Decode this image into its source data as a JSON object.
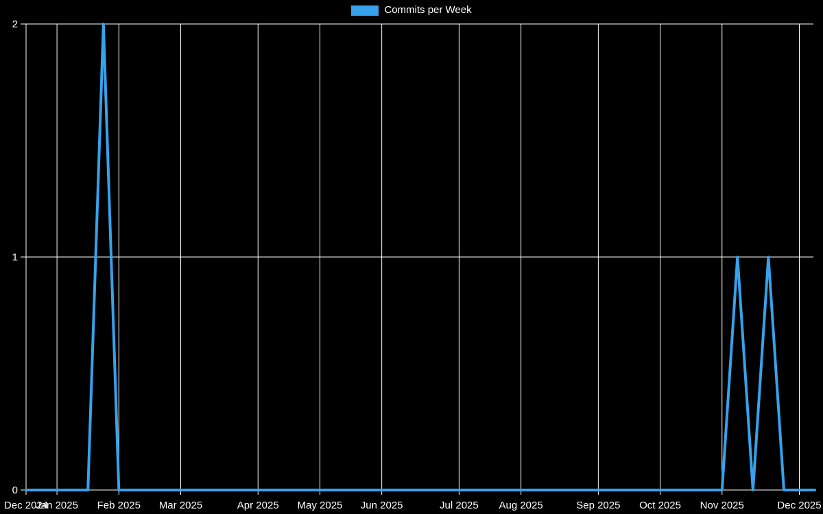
{
  "legend": {
    "label": "Commits per Week",
    "swatch_color": "#36a2eb"
  },
  "chart_data": {
    "type": "line",
    "title": "",
    "x_unit": "week",
    "legend_position": "top",
    "grid": true,
    "background": "#000000",
    "grid_color": "#ffffff",
    "text_color": "#ffffff",
    "line_color": "#36a2eb",
    "ylim": [
      0,
      2
    ],
    "y_ticks": [
      0,
      1,
      2
    ],
    "x_ticks": [
      {
        "label": "Dec 2024",
        "week": 0
      },
      {
        "label": "Jan 2025",
        "week": 2
      },
      {
        "label": "Feb 2025",
        "week": 6
      },
      {
        "label": "Mar 2025",
        "week": 10
      },
      {
        "label": "Apr 2025",
        "week": 15
      },
      {
        "label": "May 2025",
        "week": 19
      },
      {
        "label": "Jun 2025",
        "week": 23
      },
      {
        "label": "Jul 2025",
        "week": 28
      },
      {
        "label": "Aug 2025",
        "week": 32
      },
      {
        "label": "Sep 2025",
        "week": 37
      },
      {
        "label": "Oct 2025",
        "week": 41
      },
      {
        "label": "Nov 2025",
        "week": 45
      },
      {
        "label": "Dec 2025",
        "week": 50
      }
    ],
    "series": [
      {
        "name": "Commits per Week",
        "values": [
          0,
          0,
          0,
          0,
          0,
          2,
          0,
          0,
          0,
          0,
          0,
          0,
          0,
          0,
          0,
          0,
          0,
          0,
          0,
          0,
          0,
          0,
          0,
          0,
          0,
          0,
          0,
          0,
          0,
          0,
          0,
          0,
          0,
          0,
          0,
          0,
          0,
          0,
          0,
          0,
          0,
          0,
          0,
          0,
          0,
          0,
          1,
          0,
          1,
          0,
          0,
          0
        ]
      }
    ]
  }
}
